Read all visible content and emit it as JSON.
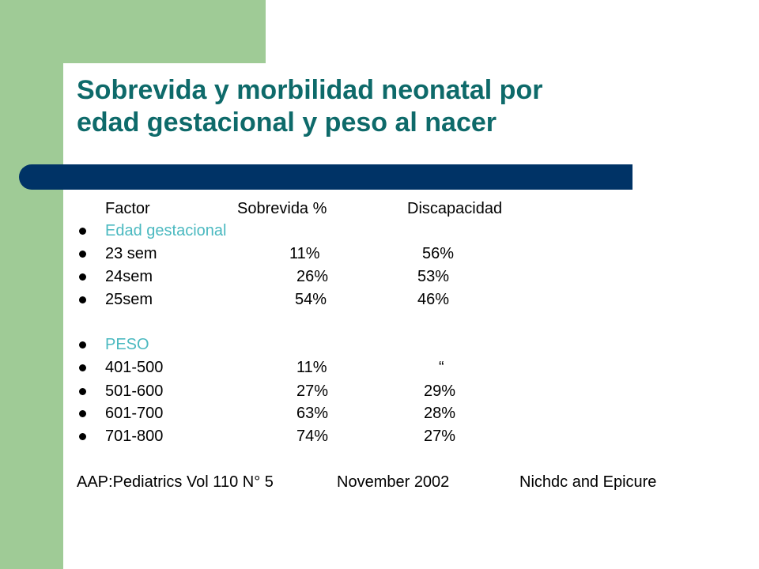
{
  "title": {
    "line1": "Sobrevida y morbilidad neonatal por",
    "line2": "edad gestacional y peso al nacer"
  },
  "header": {
    "factor": "Factor",
    "survival": "Sobrevida %",
    "disability": "Discapacidad"
  },
  "rows": [
    {
      "label": "Edad gestacional",
      "survival": "",
      "disability": ""
    },
    {
      "label": "23 sem",
      "survival": "11%",
      "disability": "56%"
    },
    {
      "label": "24sem",
      "survival": "26%",
      "disability": "53%"
    },
    {
      "label": "25sem",
      "survival": "54%",
      "disability": "46%"
    },
    {
      "label": "PESO",
      "survival": "",
      "disability": ""
    },
    {
      "label": "401-500",
      "survival": "11%",
      "disability": "“"
    },
    {
      "label": "501-600",
      "survival": "27%",
      "disability": "29%"
    },
    {
      "label": "601-700",
      "survival": "63%",
      "disability": "28%"
    },
    {
      "label": "701-800",
      "survival": "74%",
      "disability": "27%"
    }
  ],
  "footer": {
    "source": "AAP:Pediatrics Vol 110 N° 5",
    "date": "November 2002",
    "authors": "Nichdc and Epicure"
  },
  "colors": {
    "title": "#0e6a6a",
    "accent": "#4bb9c0",
    "bar": "#003366",
    "side": "#9fcb96"
  }
}
